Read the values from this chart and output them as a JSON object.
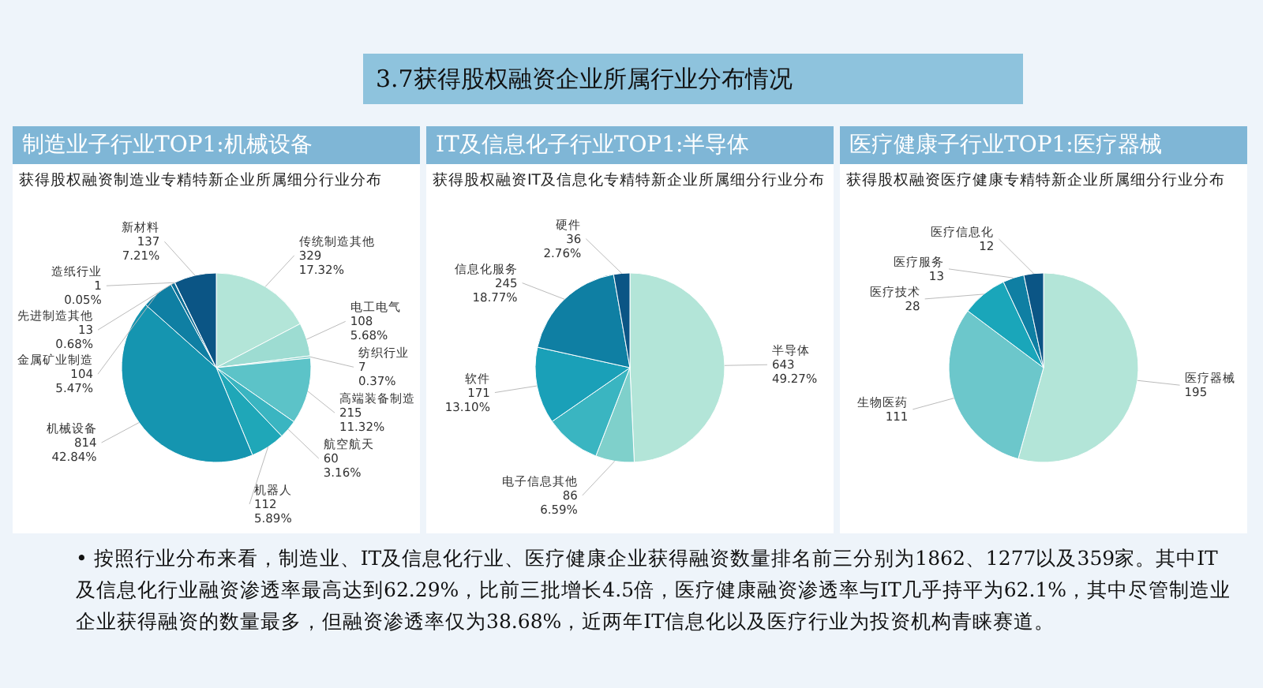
{
  "chart_data": [
    {
      "type": "pie",
      "title": "制造业子行业TOP1:机械设备",
      "subtitle": "获得股权融资制造业专精特新企业所属细分行业分布",
      "annotations": [
        "3.7获得股权融资企业所属行业分布情况"
      ],
      "categories": [
        "传统制造其他",
        "电工电气",
        "纺织行业",
        "高端装备制造",
        "航空航天",
        "机器人",
        "机械设备",
        "金属矿业制造",
        "先进制造其他",
        "造纸行业",
        "新材料"
      ],
      "values": [
        17.32,
        5.68,
        0.37,
        11.32,
        3.16,
        5.89,
        42.84,
        5.47,
        0.68,
        0.05,
        7.21
      ],
      "value_labels": [
        "329\n17.32%",
        "108\n5.68%",
        "7\n0.37%",
        "215\n11.32%",
        "60\n3.16%",
        "112\n5.89%",
        "814\n42.84%",
        "104\n5.47%",
        "13\n0.68%",
        "1\n0.05%",
        "137\n7.21%"
      ],
      "colors": [
        "#b3e5d8",
        "#9ddcd2",
        "#8ad3cc",
        "#5cc3c8",
        "#3ab5c1",
        "#1fa7b8",
        "#1595b0",
        "#0f7fa3",
        "#0c6e96",
        "#0a5e8a",
        "#0b5585"
      ]
    },
    {
      "type": "pie",
      "title": "IT及信息化子行业TOP1:半导体",
      "subtitle": "获得股权融资IT及信息化专精特新企业所属细分行业分布",
      "categories": [
        "半导体",
        "电子信息其他",
        null,
        "软件",
        "信息化服务",
        "硬件"
      ],
      "values": [
        49.27,
        6.59,
        9.51,
        13.1,
        18.77,
        2.76
      ],
      "value_labels": [
        "643\n49.27%",
        "86\n6.59%",
        null,
        "171\n13.10%",
        "245\n18.77%",
        "36\n2.76%"
      ],
      "colors": [
        "#b3e5d8",
        "#7fd0cb",
        "#3ab5c1",
        "#1aa0b8",
        "#0f7fa3",
        "#0b5585"
      ]
    },
    {
      "type": "pie",
      "title": "医疗健康子行业TOP1:医疗器械",
      "subtitle": "获得股权融资医疗健康专精特新企业所属细分行业分布",
      "data_labels": true,
      "annotations": [
        "•  按照行业分布来看，制造业、IT及信息化行业、医疗健康企业获得融资数量排名前三分别为1862、1277以及359家。其中IT及信息化行业融资渗透率最高达到62.29%，比前三批增长4.5倍，医疗健康融资渗透率与IT几乎持平为62.1%，其中尽管制造业企业获得融资的数量最多，但融资渗透率仅为38.68%，近两年IT信息化以及医疗行业为投资机构青睐赛道。"
      ],
      "categories": [
        "医疗器械",
        "生物医药",
        "医疗技术",
        "医疗服务",
        "医疗信息化"
      ],
      "values": [
        195,
        111,
        28,
        13,
        12
      ],
      "colors": [
        "#b3e5d8",
        "#6cc7cb",
        "#1aa6ba",
        "#0f7fa3",
        "#0b5585"
      ]
    }
  ]
}
